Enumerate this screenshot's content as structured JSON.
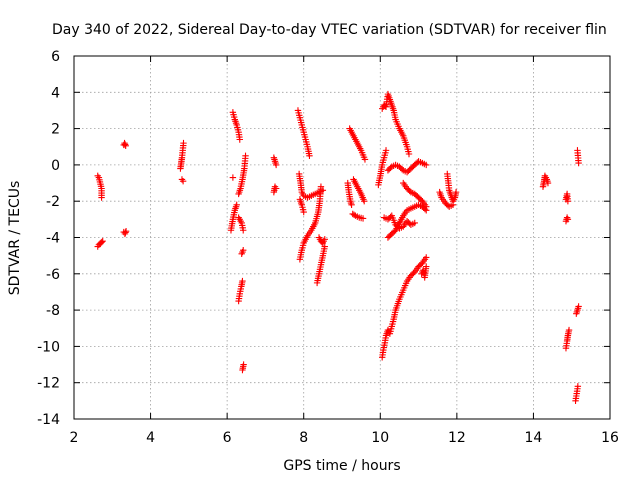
{
  "chart_data": {
    "type": "scatter",
    "title": "Day 340 of 2022, Sidereal Day-to-day VTEC variation (SDTVAR) for receiver flin",
    "xlabel": "GPS time / hours",
    "ylabel": "SDTVAR / TECUs",
    "xlim": [
      2,
      16
    ],
    "ylim": [
      -14,
      6
    ],
    "xticks": [
      2,
      4,
      6,
      8,
      10,
      12,
      14,
      16
    ],
    "yticks": [
      -14,
      -12,
      -10,
      -8,
      -6,
      -4,
      -2,
      0,
      2,
      4,
      6
    ],
    "grid": true,
    "marker": "+",
    "color": "#ff0000",
    "series": [
      {
        "name": "SDTVAR",
        "segments": [
          [
            [
              2.62,
              -0.6
            ],
            [
              2.65,
              -0.7
            ],
            [
              2.72,
              -1.3
            ],
            [
              2.72,
              -1.8
            ]
          ],
          [
            [
              2.62,
              -4.5
            ],
            [
              2.65,
              -4.4
            ],
            [
              2.7,
              -4.3
            ],
            [
              2.75,
              -4.2
            ]
          ],
          [
            [
              3.3,
              1.1
            ],
            [
              3.32,
              1.2
            ],
            [
              3.35,
              1.05
            ]
          ],
          [
            [
              3.3,
              -3.7
            ],
            [
              3.33,
              -3.8
            ],
            [
              3.36,
              -3.65
            ]
          ],
          [
            [
              4.78,
              -0.2
            ],
            [
              4.8,
              0.1
            ],
            [
              4.82,
              0.4
            ],
            [
              4.84,
              0.8
            ],
            [
              4.86,
              1.2
            ]
          ],
          [
            [
              4.82,
              -0.8
            ],
            [
              4.85,
              -0.9
            ]
          ],
          [
            [
              6.1,
              -3.6
            ],
            [
              6.15,
              -3.0
            ],
            [
              6.2,
              -2.5
            ],
            [
              6.25,
              -2.2
            ]
          ],
          [
            [
              6.15,
              2.9
            ],
            [
              6.2,
              2.5
            ],
            [
              6.25,
              2.2
            ],
            [
              6.3,
              1.8
            ],
            [
              6.33,
              1.4
            ]
          ],
          [
            [
              6.15,
              -0.7
            ]
          ],
          [
            [
              6.3,
              -1.6
            ],
            [
              6.35,
              -1.3
            ],
            [
              6.4,
              -0.8
            ],
            [
              6.45,
              -0.2
            ],
            [
              6.48,
              0.5
            ]
          ],
          [
            [
              6.3,
              -2.9
            ],
            [
              6.38,
              -3.2
            ],
            [
              6.42,
              -3.6
            ]
          ],
          [
            [
              6.3,
              -7.5
            ],
            [
              6.33,
              -7.1
            ],
            [
              6.37,
              -6.7
            ],
            [
              6.4,
              -6.4
            ]
          ],
          [
            [
              6.38,
              -4.9
            ],
            [
              6.42,
              -4.7
            ]
          ],
          [
            [
              6.4,
              -11.3
            ],
            [
              6.43,
              -11.0
            ]
          ],
          [
            [
              7.22,
              0.4
            ],
            [
              7.25,
              0.2
            ],
            [
              7.28,
              0.0
            ]
          ],
          [
            [
              7.22,
              -1.5
            ],
            [
              7.25,
              -1.2
            ],
            [
              7.28,
              -1.3
            ]
          ],
          [
            [
              7.85,
              3.0
            ],
            [
              7.9,
              2.6
            ],
            [
              7.95,
              2.2
            ],
            [
              8.0,
              1.8
            ],
            [
              8.05,
              1.4
            ],
            [
              8.1,
              1.0
            ],
            [
              8.15,
              0.5
            ]
          ],
          [
            [
              7.88,
              -0.5
            ],
            [
              7.92,
              -1.0
            ],
            [
              7.95,
              -1.5
            ],
            [
              8.0,
              -1.7
            ],
            [
              8.1,
              -1.8
            ],
            [
              8.2,
              -1.7
            ],
            [
              8.3,
              -1.6
            ],
            [
              8.4,
              -1.5
            ],
            [
              8.5,
              -1.4
            ]
          ],
          [
            [
              7.9,
              -5.2
            ],
            [
              7.95,
              -4.7
            ],
            [
              8.0,
              -4.3
            ],
            [
              8.1,
              -3.9
            ],
            [
              8.2,
              -3.6
            ],
            [
              8.3,
              -3.2
            ],
            [
              8.38,
              -2.6
            ],
            [
              8.42,
              -2.0
            ],
            [
              8.45,
              -1.2
            ]
          ],
          [
            [
              7.9,
              -1.9
            ],
            [
              7.95,
              -2.2
            ],
            [
              8.0,
              -2.6
            ]
          ],
          [
            [
              8.35,
              -6.5
            ],
            [
              8.4,
              -6.0
            ],
            [
              8.45,
              -5.5
            ],
            [
              8.5,
              -5.0
            ],
            [
              8.55,
              -4.5
            ]
          ],
          [
            [
              8.4,
              -4.0
            ],
            [
              8.45,
              -4.2
            ],
            [
              8.5,
              -4.3
            ],
            [
              8.55,
              -4.1
            ]
          ],
          [
            [
              9.15,
              -1.0
            ],
            [
              9.18,
              -1.5
            ],
            [
              9.22,
              -2.0
            ],
            [
              9.25,
              -2.2
            ]
          ],
          [
            [
              9.2,
              2.0
            ],
            [
              9.3,
              1.6
            ],
            [
              9.4,
              1.2
            ],
            [
              9.5,
              0.8
            ],
            [
              9.6,
              0.3
            ]
          ],
          [
            [
              9.3,
              -0.8
            ],
            [
              9.4,
              -1.2
            ],
            [
              9.5,
              -1.6
            ],
            [
              9.58,
              -2.0
            ]
          ],
          [
            [
              9.28,
              -2.7
            ],
            [
              9.35,
              -2.8
            ],
            [
              9.45,
              -2.9
            ],
            [
              9.55,
              -2.95
            ]
          ],
          [
            [
              9.95,
              -1.1
            ],
            [
              10.0,
              -0.6
            ],
            [
              10.05,
              0.0
            ],
            [
              10.1,
              0.4
            ],
            [
              10.15,
              0.8
            ]
          ],
          [
            [
              10.05,
              3.1
            ],
            [
              10.1,
              3.3
            ],
            [
              10.15,
              3.2
            ],
            [
              10.2,
              3.9
            ],
            [
              10.25,
              3.6
            ],
            [
              10.3,
              3.3
            ],
            [
              10.35,
              3.0
            ],
            [
              10.4,
              2.5
            ],
            [
              10.5,
              2.0
            ],
            [
              10.6,
              1.6
            ],
            [
              10.7,
              1.0
            ],
            [
              10.75,
              0.6
            ]
          ],
          [
            [
              10.2,
              -0.3
            ],
            [
              10.3,
              -0.1
            ],
            [
              10.4,
              0.0
            ],
            [
              10.5,
              -0.1
            ],
            [
              10.6,
              -0.3
            ],
            [
              10.7,
              -0.4
            ],
            [
              10.8,
              -0.2
            ],
            [
              10.9,
              0.0
            ],
            [
              11.0,
              0.2
            ],
            [
              11.1,
              0.1
            ],
            [
              11.2,
              0.0
            ]
          ],
          [
            [
              10.1,
              -2.9
            ],
            [
              10.2,
              -3.0
            ],
            [
              10.3,
              -2.8
            ],
            [
              10.4,
              -3.3
            ],
            [
              10.5,
              -3.5
            ],
            [
              10.6,
              -3.4
            ],
            [
              10.7,
              -3.1
            ],
            [
              10.8,
              -3.3
            ],
            [
              10.9,
              -3.2
            ]
          ],
          [
            [
              10.2,
              -4.0
            ],
            [
              10.3,
              -3.8
            ],
            [
              10.4,
              -3.6
            ],
            [
              10.5,
              -3.2
            ],
            [
              10.6,
              -2.8
            ],
            [
              10.7,
              -2.5
            ],
            [
              10.8,
              -2.4
            ],
            [
              10.9,
              -2.3
            ],
            [
              11.0,
              -2.2
            ],
            [
              11.1,
              -2.3
            ],
            [
              11.2,
              -2.5
            ]
          ],
          [
            [
              10.05,
              -10.6
            ],
            [
              10.08,
              -10.2
            ],
            [
              10.12,
              -9.8
            ],
            [
              10.15,
              -9.4
            ],
            [
              10.2,
              -9.1
            ],
            [
              10.25,
              -9.3
            ],
            [
              10.3,
              -8.9
            ],
            [
              10.35,
              -8.5
            ],
            [
              10.4,
              -8.0
            ],
            [
              10.5,
              -7.4
            ],
            [
              10.6,
              -6.9
            ],
            [
              10.7,
              -6.4
            ],
            [
              10.8,
              -6.1
            ],
            [
              10.9,
              -5.9
            ],
            [
              11.0,
              -5.6
            ],
            [
              11.1,
              -5.4
            ],
            [
              11.2,
              -5.1
            ]
          ],
          [
            [
              10.6,
              -1.0
            ],
            [
              10.7,
              -1.3
            ],
            [
              10.8,
              -1.5
            ],
            [
              10.9,
              -1.6
            ],
            [
              11.0,
              -1.8
            ],
            [
              11.1,
              -2.0
            ],
            [
              11.2,
              -2.3
            ]
          ],
          [
            [
              11.08,
              -6.0
            ],
            [
              11.12,
              -5.8
            ],
            [
              11.16,
              -6.2
            ],
            [
              11.2,
              -5.6
            ]
          ],
          [
            [
              11.75,
              -0.5
            ],
            [
              11.78,
              -1.0
            ],
            [
              11.8,
              -1.4
            ],
            [
              11.85,
              -1.7
            ],
            [
              11.9,
              -2.0
            ],
            [
              11.95,
              -1.8
            ],
            [
              11.98,
              -1.5
            ]
          ],
          [
            [
              11.55,
              -1.5
            ],
            [
              11.6,
              -1.8
            ],
            [
              11.7,
              -2.1
            ],
            [
              11.8,
              -2.3
            ],
            [
              11.9,
              -2.2
            ]
          ],
          [
            [
              14.25,
              -1.2
            ],
            [
              14.28,
              -0.9
            ],
            [
              14.3,
              -0.6
            ],
            [
              14.35,
              -0.8
            ],
            [
              14.38,
              -1.0
            ]
          ],
          [
            [
              14.85,
              -1.9
            ],
            [
              14.88,
              -1.6
            ],
            [
              14.9,
              -2.0
            ]
          ],
          [
            [
              14.85,
              -3.1
            ],
            [
              14.88,
              -2.9
            ],
            [
              14.9,
              -3.0
            ]
          ],
          [
            [
              14.85,
              -10.1
            ],
            [
              14.88,
              -9.7
            ],
            [
              14.9,
              -9.4
            ],
            [
              14.93,
              -9.1
            ]
          ],
          [
            [
              15.15,
              0.8
            ],
            [
              15.18,
              0.1
            ]
          ],
          [
            [
              15.12,
              -8.2
            ],
            [
              15.15,
              -8.0
            ],
            [
              15.18,
              -7.8
            ]
          ],
          [
            [
              15.1,
              -13.0
            ],
            [
              15.13,
              -12.6
            ],
            [
              15.16,
              -12.2
            ]
          ]
        ]
      }
    ]
  }
}
